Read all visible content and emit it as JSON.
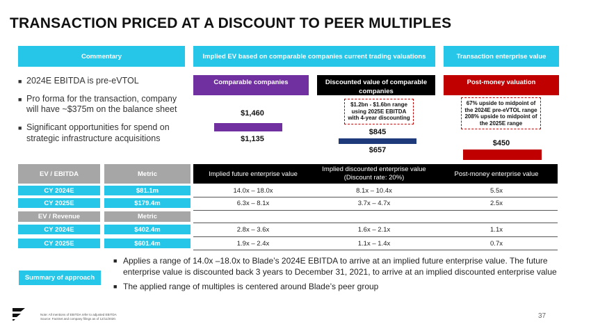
{
  "title": "TRANSACTION PRICED AT A DISCOUNT TO PEER MULTIPLES",
  "headers": {
    "commentary": "Commentary",
    "implied_ev": "Implied EV based on comparable companies current trading valuations",
    "transaction_ev": "Transaction enterprise value"
  },
  "subheaders": {
    "comparable": "Comparable companies",
    "discounted": "Discounted value of comparable companies",
    "post_money": "Post-money valuation"
  },
  "commentary_bullets": [
    "2024E EBITDA is pre-eVTOL",
    "Pro forma for the transaction, company will have ~$375m on the balance sheet",
    "Significant opportunities for spend on strategic infrastructure acquisitions"
  ],
  "chart": {
    "comparable": {
      "high": "$1,460",
      "low": "$1,135"
    },
    "discounted": {
      "note": "$1.2bn - $1.6bn range using 2025E EBITDA with 4-year discounting",
      "high": "$845",
      "low": "$657"
    },
    "post_money": {
      "note": "67% upside to midpoint of the 2024E pre-eVTOL range 208% upside to midpoint of the 2025E range",
      "value": "$450"
    }
  },
  "colors": {
    "cyan": "#26c6e8",
    "purple": "#7030a0",
    "navy": "#1f3a7a",
    "red": "#c00000",
    "gray": "#a6a6a6",
    "black": "#000000"
  },
  "table": {
    "ebitda_header": {
      "label": "EV / EBITDA",
      "metric": "Metric"
    },
    "col_headers": [
      "Implied future enterprise value",
      "Implied discounted enterprise value (Discount rate: 20%)",
      "Post-money enterprise value"
    ],
    "ebitda_rows": [
      {
        "label": "CY 2024E",
        "metric": "$81.1m",
        "c1": "14.0x – 18.0x",
        "c2": "8.1x – 10.4x",
        "c3": "5.5x"
      },
      {
        "label": "CY 2025E",
        "metric": "$179.4m",
        "c1": "6.3x – 8.1x",
        "c2": "3.7x – 4.7x",
        "c3": "2.5x"
      }
    ],
    "revenue_header": {
      "label": "EV / Revenue",
      "metric": "Metric"
    },
    "revenue_rows": [
      {
        "label": "CY 2024E",
        "metric": "$402.4m",
        "c1": "2.8x – 3.6x",
        "c2": "1.6x – 2.1x",
        "c3": "1.1x"
      },
      {
        "label": "CY 2025E",
        "metric": "$601.4m",
        "c1": "1.9x – 2.4x",
        "c2": "1.1x – 1.4x",
        "c3": "0.7x"
      }
    ]
  },
  "summary_label": "Summary of approach",
  "summary_bullets": [
    "Applies a range of 14.0x –18.0x to Blade’s 2024E EBITDA to arrive at an implied future enterprise value. The future enterprise value is discounted back 3 years to December 31, 2021, to arrive at an implied discounted enterprise value",
    "The applied range of multiples is centered around Blade’s peer group"
  ],
  "note_lines": [
    "Note: All mentions of EBITDA refer to adjusted EBITDA",
    "Source: FactSet and company filings as of 12/11/2020."
  ],
  "page_number": "37"
}
